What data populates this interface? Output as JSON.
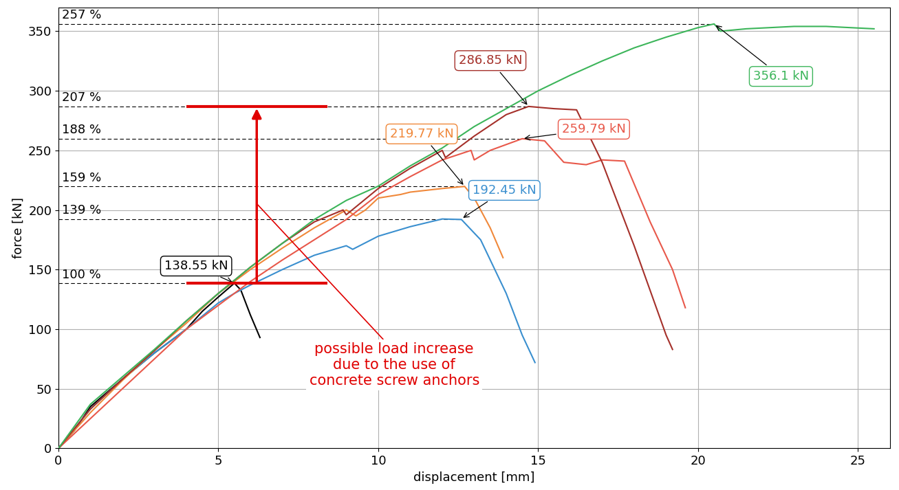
{
  "chart_data": {
    "type": "line",
    "x_label": "displacement [mm]",
    "y_label": "force [kN]",
    "xlim": [
      0,
      26
    ],
    "xticks": [
      0,
      5,
      10,
      15,
      20,
      25
    ],
    "ylim": [
      0,
      370
    ],
    "yticks": [
      0,
      50,
      100,
      150,
      200,
      250,
      300,
      350
    ],
    "grid": true,
    "series": [
      {
        "color": "#000000",
        "x": [
          0,
          0.5,
          1,
          2,
          3,
          4,
          4.5,
          5,
          5.5,
          5.7,
          6.0,
          6.3
        ],
        "values": [
          0,
          15,
          35,
          58,
          80,
          100,
          115,
          127,
          138.55,
          133,
          112,
          93
        ],
        "peak": {
          "x": 5.5,
          "value": 138.55,
          "label": "138.55 kN"
        },
        "percent_label": "100 %"
      },
      {
        "color": "#3a8fcf",
        "x": [
          0,
          1,
          2,
          3,
          4,
          5,
          5.5,
          6,
          7,
          8,
          9,
          9.2,
          10,
          11,
          12,
          12.6,
          13.2,
          14,
          14.5,
          14.9
        ],
        "values": [
          0,
          33,
          58,
          80,
          100,
          122,
          130,
          137,
          150,
          162,
          170,
          167,
          178,
          186,
          192.45,
          192,
          175,
          130,
          95,
          72
        ],
        "peak": {
          "x": 12.6,
          "value": 192.45,
          "label": "192.45 kN"
        },
        "percent_label": "139 %"
      },
      {
        "color": "#f0883a",
        "x": [
          0,
          1,
          2,
          3,
          4,
          5,
          6,
          7,
          8,
          9,
          9.3,
          9.6,
          10,
          10.7,
          11,
          12,
          12.7,
          13,
          13.5,
          13.9
        ],
        "values": [
          0,
          30,
          57,
          82,
          105,
          130,
          150,
          168,
          185,
          200,
          195,
          200,
          210,
          213,
          215,
          218,
          219.77,
          210,
          185,
          160
        ],
        "peak": {
          "x": 12.7,
          "value": 219.77,
          "label": "219.77 kN"
        },
        "percent_label": "159 %"
      },
      {
        "color": "#e8584a",
        "x": [
          0,
          1,
          2,
          3,
          4,
          5,
          6,
          7,
          8,
          9,
          10,
          11,
          12,
          12.9,
          13.0,
          13.5,
          14.5,
          15.2,
          15.8,
          16.5,
          17,
          17.7,
          18.5,
          19.2,
          19.6
        ],
        "values": [
          0,
          25,
          50,
          75,
          100,
          120,
          140,
          158,
          175,
          192,
          213,
          228,
          242,
          250,
          242,
          250,
          259.79,
          258,
          240,
          238,
          242,
          241,
          190,
          150,
          118
        ],
        "peak": {
          "x": 14.5,
          "value": 259.79,
          "label": "259.79 kN"
        },
        "percent_label": "188 %"
      },
      {
        "color": "#a5302a",
        "x": [
          0,
          1,
          2,
          3,
          4,
          5,
          6,
          7,
          8,
          8.9,
          9.0,
          10,
          11,
          12,
          12.1,
          13,
          14,
          14.7,
          15.5,
          16.2,
          17,
          18,
          19,
          19.2
        ],
        "values": [
          0,
          33,
          58,
          82,
          107,
          130,
          152,
          172,
          190,
          200,
          196,
          218,
          235,
          250,
          244,
          262,
          280,
          286.85,
          285,
          284,
          240,
          170,
          95,
          83
        ],
        "peak": {
          "x": 14.7,
          "value": 286.85,
          "label": "286.85 kN"
        },
        "percent_label": "207 %"
      },
      {
        "color": "#3cb55a",
        "x": [
          0,
          1,
          2,
          3,
          4,
          5,
          6,
          7,
          8,
          9,
          10,
          11,
          12,
          13,
          14,
          15,
          16,
          17,
          18,
          19,
          20,
          20.5,
          20.7,
          21.5,
          23,
          24,
          25.5
        ],
        "values": [
          0,
          37,
          60,
          83,
          107,
          130,
          152,
          172,
          192,
          208,
          220,
          237,
          252,
          270,
          285,
          300,
          313,
          325,
          336,
          345,
          353,
          356.1,
          350,
          352,
          354,
          354,
          352
        ],
        "peak": {
          "x": 20.5,
          "value": 356.1,
          "label": "356.1 kN"
        },
        "percent_label": "257 %"
      }
    ],
    "highlight": {
      "low": 138.55,
      "high": 286.85,
      "label": "possible load increase\ndue to the use of\nconcrete screw anchors",
      "color": "#e00000"
    }
  }
}
